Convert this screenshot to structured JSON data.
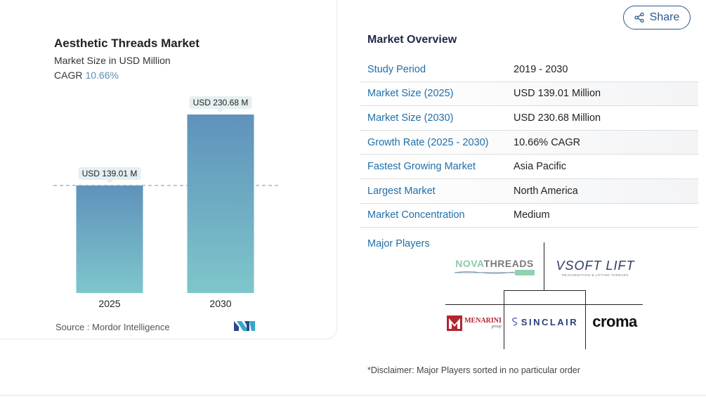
{
  "chart_data": {
    "type": "bar",
    "title": "Aesthetic Threads Market",
    "subtitle": "Market Size in USD Million",
    "cagr_label": "CAGR",
    "cagr_value": "10.66%",
    "categories": [
      "2025",
      "2030"
    ],
    "values": [
      139.01,
      230.68
    ],
    "data_labels": [
      "USD 139.01 M",
      "USD 230.68 M"
    ],
    "ylim": [
      0,
      230.68
    ],
    "grid": false,
    "reference_line": "dashed at 2025 value",
    "colors": {
      "bar_top": "#5f92bb",
      "bar_bottom": "#7ec6cb",
      "label_bg": "#e6eff1",
      "dash": "#7aa6c0"
    }
  },
  "source": {
    "label": "Source :",
    "name": "Mordor Intelligence"
  },
  "share_button": {
    "label": "Share",
    "icon": "share-icon"
  },
  "overview": {
    "title": "Market Overview",
    "rows": [
      {
        "label": "Study Period",
        "value": "2019 - 2030"
      },
      {
        "label": "Market Size (2025)",
        "value": "USD 139.01 Million"
      },
      {
        "label": "Market Size (2030)",
        "value": "USD 230.68 Million"
      },
      {
        "label": "Growth Rate (2025 - 2030)",
        "value": "10.66% CAGR"
      },
      {
        "label": "Fastest Growing Market",
        "value": "Asia Pacific"
      },
      {
        "label": "Largest Market",
        "value": "North America"
      },
      {
        "label": "Market Concentration",
        "value": "Medium"
      }
    ],
    "players_label": "Major Players",
    "players": [
      {
        "logo_text_a": "NOVA",
        "logo_text_b": "THREADS"
      },
      {
        "logo_text": "SOFT LIFT",
        "logo_sub": "REJUVENATION & LIFTING THREADS"
      },
      {
        "logo_text": "MENARINI",
        "logo_sub": "group"
      },
      {
        "logo_text": "SINCLAIR"
      },
      {
        "logo_text": "croma"
      }
    ],
    "disclaimer": "*Disclaimer: Major Players sorted in no particular order"
  }
}
